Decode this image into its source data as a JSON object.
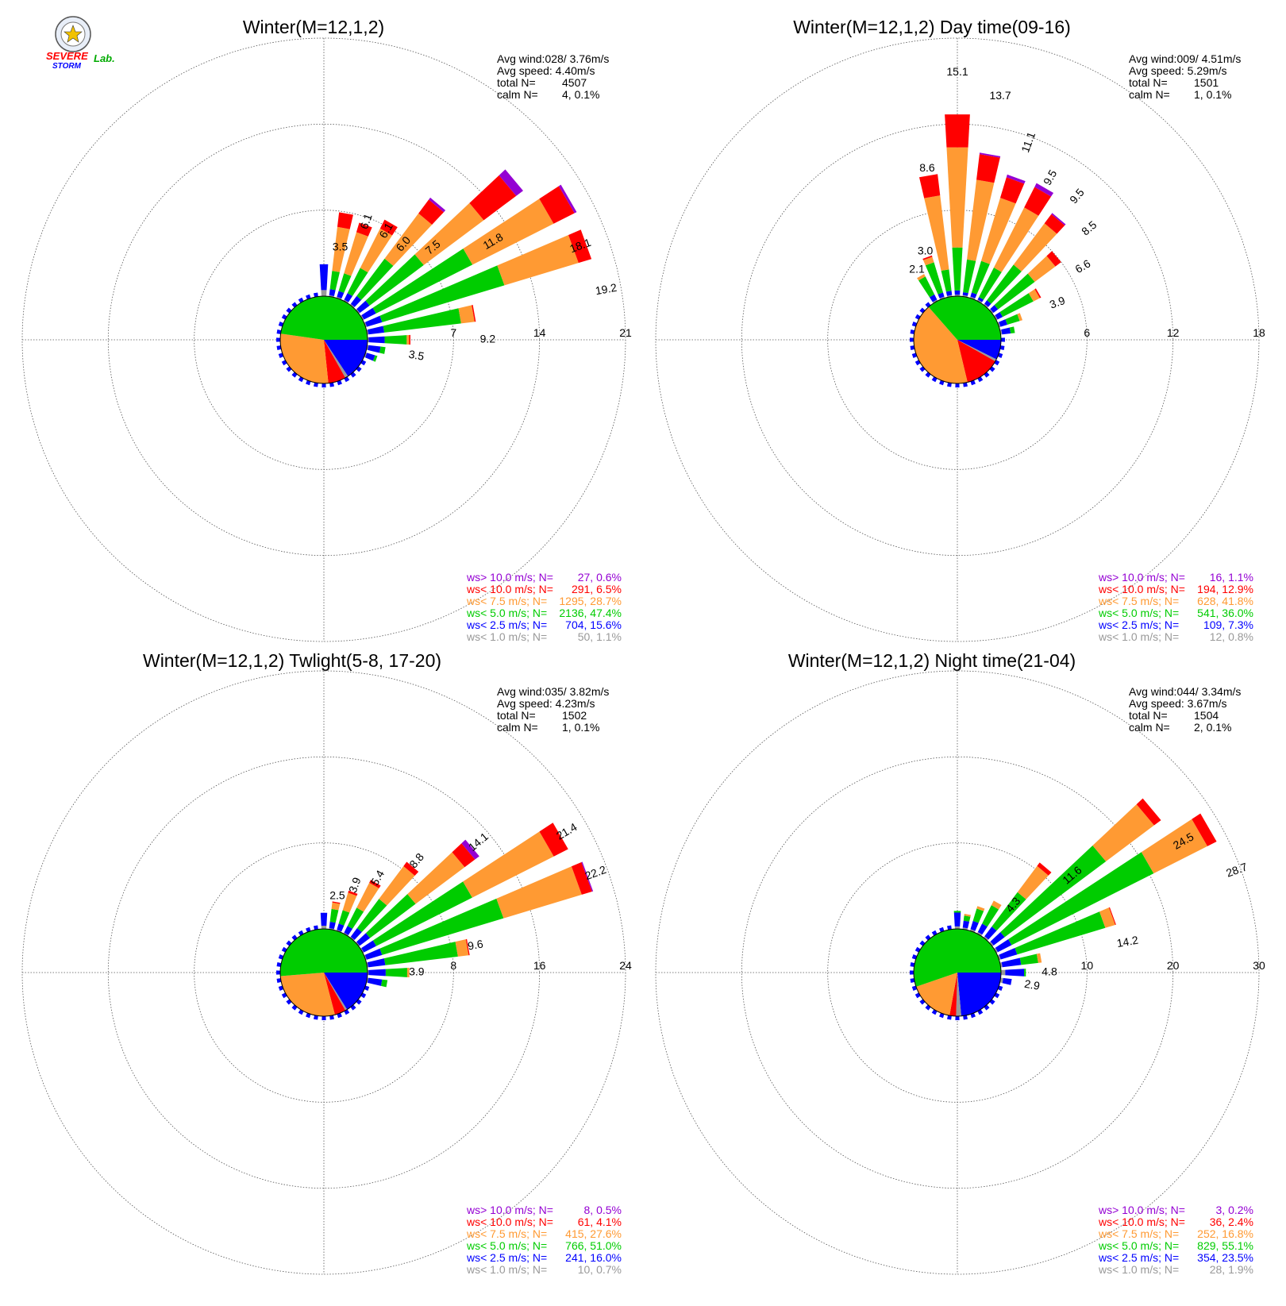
{
  "logo": {
    "brand_line1": "SEVERE",
    "brand_line2": "STORM",
    "brand_lab": "Lab."
  },
  "colors": {
    "gt10": "#9400d3",
    "lt10": "#ff0000",
    "lt7_5": "#ff9a33",
    "lt5": "#00cc00",
    "lt2_5": "#0000ff",
    "lt1": "#999999"
  },
  "chart_data": [
    {
      "type": "wind-rose",
      "title": "Winter(M=12,1,2)",
      "ring_labels": [
        "7",
        "14",
        "21"
      ],
      "rmax": 21,
      "stats": {
        "avg_wind": "Avg wind:028/ 3.76m/s",
        "avg_speed": "Avg speed: 4.40m/s",
        "total_label": "total N=",
        "total_value": "4507",
        "calm_label": "calm N=",
        "calm_value": "4,   0.1%"
      },
      "legend": [
        {
          "key": "gt10",
          "label": "ws> 10.0 m/s; N=",
          "value": "27,  0.6%"
        },
        {
          "key": "lt10",
          "label": "ws< 10.0 m/s; N=",
          "value": "291,  6.5%"
        },
        {
          "key": "lt7_5",
          "label": "ws<  7.5 m/s; N=",
          "value": "1295, 28.7%"
        },
        {
          "key": "lt5",
          "label": "ws<  5.0 m/s; N=",
          "value": "2136, 47.4%"
        },
        {
          "key": "lt2_5",
          "label": "ws<  2.5 m/s; N=",
          "value": "704, 15.6%"
        },
        {
          "key": "lt1",
          "label": "ws<  1.0 m/s; N=",
          "value": "50,  1.1%"
        }
      ],
      "pie": [
        {
          "key": "lt2_5",
          "value": 15.6
        },
        {
          "key": "lt1",
          "value": 1.1
        },
        {
          "key": "lt10",
          "value": 6.5
        },
        {
          "key": "lt7_5",
          "value": 28.7
        },
        {
          "key": "lt5",
          "value": 47.4
        }
      ],
      "sectors": [
        {
          "dir": 0,
          "segments": [
            [
              0.5,
              2.1,
              0,
              0,
              0,
              0
            ]
          ]
        },
        {
          "dir": 10,
          "segments": [
            [
              0.1,
              0.5,
              1.5,
              3.6,
              1.2,
              0.0
            ]
          ]
        },
        {
          "dir": 20,
          "segments": [
            [
              0.1,
              0.5,
              1.5,
              3.5,
              0.8,
              0.0
            ]
          ]
        },
        {
          "dir": 30,
          "segments": [
            [
              0.1,
              0.6,
              2.3,
              3.6,
              0.8,
              0.0
            ]
          ]
        },
        {
          "dir": 40,
          "segments": [
            [
              0.1,
              0.8,
              3.8,
              4.6,
              1.4,
              0.2
            ]
          ]
        },
        {
          "dir": 50,
          "segments": [
            [
              0.1,
              1.0,
              5.5,
              6.1,
              3.3,
              0.7
            ]
          ]
        },
        {
          "dir": 60,
          "segments": [
            [
              0.1,
              1.1,
              8.8,
              7.4,
              1.9,
              0.2
            ]
          ]
        },
        {
          "dir": 70,
          "segments": [
            [
              0.1,
              1.3,
              10.4,
              6.3,
              1.1,
              0.0
            ]
          ]
        },
        {
          "dir": 80,
          "segments": [
            [
              0.1,
              1.3,
              6.3,
              1.1,
              0.1,
              0.0
            ]
          ]
        },
        {
          "dir": 90,
          "segments": [
            [
              0.1,
              1.3,
              1.8,
              0.2,
              0.1,
              0.0
            ]
          ]
        },
        {
          "dir": 100,
          "segments": [
            [
              0.1,
              1.0,
              0.4,
              0,
              0,
              0
            ]
          ]
        },
        {
          "dir": 110,
          "segments": [
            [
              0.1,
              0.7,
              0.2,
              0,
              0,
              0
            ]
          ]
        }
      ],
      "bar_labels": [
        {
          "dir": 10,
          "value": "3.5"
        },
        {
          "dir": 20,
          "value": "6.1"
        },
        {
          "dir": 30,
          "value": "6.1"
        },
        {
          "dir": 40,
          "value": "6.0"
        },
        {
          "dir": 50,
          "value": "7.5"
        },
        {
          "dir": 60,
          "value": "11.8"
        },
        {
          "dir": 70,
          "value": "18.1"
        },
        {
          "dir": 80,
          "value": "19.2"
        },
        {
          "dir": 90,
          "value": "9.2"
        },
        {
          "dir": 100,
          "value": "3.5"
        }
      ]
    },
    {
      "type": "wind-rose",
      "title": "Winter(M=12,1,2) Day time(09-16)",
      "ring_labels": [
        "6",
        "12",
        "18"
      ],
      "rmax": 18,
      "stats": {
        "avg_wind": "Avg wind:009/ 4.51m/s",
        "avg_speed": "Avg speed: 5.29m/s",
        "total_label": "total N=",
        "total_value": "1501",
        "calm_label": "calm N=",
        "calm_value": "1,   0.1%"
      },
      "legend": [
        {
          "key": "gt10",
          "label": "ws> 10.0 m/s; N=",
          "value": "16,  1.1%"
        },
        {
          "key": "lt10",
          "label": "ws< 10.0 m/s; N=",
          "value": "194, 12.9%"
        },
        {
          "key": "lt7_5",
          "label": "ws<  7.5 m/s; N=",
          "value": "628, 41.8%"
        },
        {
          "key": "lt5",
          "label": "ws<  5.0 m/s; N=",
          "value": "541, 36.0%"
        },
        {
          "key": "lt2_5",
          "label": "ws<  2.5 m/s; N=",
          "value": "109,  7.3%"
        },
        {
          "key": "lt1",
          "label": "ws<  1.0 m/s; N=",
          "value": "12,  0.8%"
        }
      ],
      "pie": [
        {
          "key": "lt2_5",
          "value": 7.3
        },
        {
          "key": "lt1",
          "value": 0.8
        },
        {
          "key": "lt10",
          "value": 12.9
        },
        {
          "key": "lt7_5",
          "value": 41.8
        },
        {
          "key": "lt5",
          "value": 36.0
        }
      ],
      "sectors": [
        {
          "dir": -30,
          "segments": [
            [
              0.1,
              0.4,
              1.4,
              0.2,
              0,
              0
            ]
          ]
        },
        {
          "dir": -20,
          "segments": [
            [
              0.1,
              0.3,
              2.2,
              0.4,
              0.1,
              0
            ]
          ]
        },
        {
          "dir": -10,
          "segments": [
            [
              0.1,
              0.3,
              1.5,
              5.2,
              1.5,
              0
            ]
          ]
        },
        {
          "dir": 0,
          "segments": [
            [
              0.1,
              0.3,
              3.0,
              7.0,
              2.3,
              0
            ]
          ]
        },
        {
          "dir": 10,
          "segments": [
            [
              0.1,
              0.2,
              2.3,
              5.6,
              1.8,
              0.1
            ]
          ]
        },
        {
          "dir": 20,
          "segments": [
            [
              0.1,
              0.3,
              2.3,
              4.6,
              1.5,
              0.2
            ]
          ]
        },
        {
          "dir": 30,
          "segments": [
            [
              0.1,
              0.2,
              2.3,
              4.7,
              1.6,
              0.3
            ]
          ]
        },
        {
          "dir": 40,
          "segments": [
            [
              0.1,
              0.3,
              3.1,
              3.6,
              0.8,
              0.1
            ]
          ]
        },
        {
          "dir": 50,
          "segments": [
            [
              0.1,
              0.4,
              3.2,
              1.8,
              0.5,
              0
            ]
          ]
        },
        {
          "dir": 60,
          "segments": [
            [
              0.1,
              0.4,
              2.4,
              0.5,
              0.1,
              0
            ]
          ]
        },
        {
          "dir": 70,
          "segments": [
            [
              0.1,
              0.5,
              0.9,
              0.2,
              0,
              0
            ]
          ]
        },
        {
          "dir": 80,
          "segments": [
            [
              0.1,
              0.6,
              0.3,
              0,
              0,
              0
            ]
          ]
        }
      ],
      "bar_labels": [
        {
          "dir": -30,
          "value": "2.1"
        },
        {
          "dir": -20,
          "value": "3.0"
        },
        {
          "dir": -10,
          "value": "8.6"
        },
        {
          "dir": 0,
          "value": "15.1"
        },
        {
          "dir": 10,
          "value": "13.7"
        },
        {
          "dir": 20,
          "value": "11.1"
        },
        {
          "dir": 30,
          "value": "9.5"
        },
        {
          "dir": 40,
          "value": "9.5"
        },
        {
          "dir": 50,
          "value": "8.5"
        },
        {
          "dir": 60,
          "value": "6.6"
        },
        {
          "dir": 70,
          "value": "3.9"
        }
      ]
    },
    {
      "type": "wind-rose",
      "title": "Winter(M=12,1,2) Twlight(5-8, 17-20)",
      "ring_labels": [
        "8",
        "16",
        "24"
      ],
      "rmax": 24,
      "stats": {
        "avg_wind": "Avg wind:035/ 3.82m/s",
        "avg_speed": "Avg speed: 4.23m/s",
        "total_label": "total N=",
        "total_value": "1502",
        "calm_label": "calm N=",
        "calm_value": "1,   0.1%"
      },
      "legend": [
        {
          "key": "gt10",
          "label": "ws> 10.0 m/s; N=",
          "value": "8,  0.5%"
        },
        {
          "key": "lt10",
          "label": "ws< 10.0 m/s; N=",
          "value": "61,  4.1%"
        },
        {
          "key": "lt7_5",
          "label": "ws<  7.5 m/s; N=",
          "value": "415, 27.6%"
        },
        {
          "key": "lt5",
          "label": "ws<  5.0 m/s; N=",
          "value": "766, 51.0%"
        },
        {
          "key": "lt2_5",
          "label": "ws<  2.5 m/s; N=",
          "value": "241, 16.0%"
        },
        {
          "key": "lt1",
          "label": "ws<  1.0 m/s; N=",
          "value": "10,  0.7%"
        }
      ],
      "pie": [
        {
          "key": "lt2_5",
          "value": 16.0
        },
        {
          "key": "lt1",
          "value": 0.7
        },
        {
          "key": "lt10",
          "value": 4.1
        },
        {
          "key": "lt7_5",
          "value": 27.6
        },
        {
          "key": "lt5",
          "value": 51.0
        }
      ],
      "sectors": [
        {
          "dir": 0,
          "segments": [
            [
              0.3,
              1.2,
              0,
              0,
              0,
              0
            ]
          ]
        },
        {
          "dir": 10,
          "segments": [
            [
              0.1,
              0.6,
              1.2,
              0.6,
              0.1,
              0
            ]
          ]
        },
        {
          "dir": 20,
          "segments": [
            [
              0.1,
              0.6,
              1.3,
              1.7,
              0.2,
              0
            ]
          ]
        },
        {
          "dir": 30,
          "segments": [
            [
              0.1,
              0.7,
              1.9,
              2.6,
              0.3,
              0
            ]
          ]
        },
        {
          "dir": 40,
          "segments": [
            [
              0.1,
              1.0,
              3.4,
              3.8,
              0.5,
              0
            ]
          ]
        },
        {
          "dir": 50,
          "segments": [
            [
              0.1,
              1.2,
              5.3,
              5.7,
              1.2,
              0.5
            ]
          ]
        },
        {
          "dir": 60,
          "segments": [
            [
              0.1,
              1.3,
              10.0,
              8.5,
              1.5,
              0
            ]
          ]
        },
        {
          "dir": 70,
          "segments": [
            [
              0.1,
              1.5,
              11.8,
              7.6,
              1.0,
              0.1
            ]
          ]
        },
        {
          "dir": 80,
          "segments": [
            [
              0.1,
              1.6,
              6.8,
              1.0,
              0.1,
              0
            ]
          ]
        },
        {
          "dir": 90,
          "segments": [
            [
              0.1,
              1.6,
              2.0,
              0.2,
              0,
              0
            ]
          ]
        },
        {
          "dir": 100,
          "segments": [
            [
              0.1,
              1.3,
              0.5,
              0,
              0,
              0
            ]
          ]
        }
      ],
      "bar_labels": [
        {
          "dir": 10,
          "value": "2.5"
        },
        {
          "dir": 20,
          "value": "3.9"
        },
        {
          "dir": 30,
          "value": "5.4"
        },
        {
          "dir": 40,
          "value": "8.8"
        },
        {
          "dir": 50,
          "value": "14.1"
        },
        {
          "dir": 60,
          "value": "21.4"
        },
        {
          "dir": 70,
          "value": "22.2"
        },
        {
          "dir": 80,
          "value": "9.6"
        },
        {
          "dir": 90,
          "value": "3.9"
        }
      ]
    },
    {
      "type": "wind-rose",
      "title": "Winter(M=12,1,2) Night time(21-04)",
      "ring_labels": [
        "10",
        "20",
        "30"
      ],
      "rmax": 30,
      "stats": {
        "avg_wind": "Avg wind:044/ 3.34m/s",
        "avg_speed": "Avg speed: 3.67m/s",
        "total_label": "total N=",
        "total_value": "1504",
        "calm_label": "calm N=",
        "calm_value": "2,   0.1%"
      },
      "legend": [
        {
          "key": "gt10",
          "label": "ws> 10.0 m/s; N=",
          "value": "3,  0.2%"
        },
        {
          "key": "lt10",
          "label": "ws< 10.0 m/s; N=",
          "value": "36,  2.4%"
        },
        {
          "key": "lt7_5",
          "label": "ws<  7.5 m/s; N=",
          "value": "252, 16.8%"
        },
        {
          "key": "lt5",
          "label": "ws<  5.0 m/s; N=",
          "value": "829, 55.1%"
        },
        {
          "key": "lt2_5",
          "label": "ws<  2.5 m/s; N=",
          "value": "354, 23.5%"
        },
        {
          "key": "lt1",
          "label": "ws<  1.0 m/s; N=",
          "value": "28,  1.9%"
        }
      ],
      "pie": [
        {
          "key": "lt2_5",
          "value": 23.5
        },
        {
          "key": "lt1",
          "value": 1.9
        },
        {
          "key": "lt10",
          "value": 2.4
        },
        {
          "key": "lt7_5",
          "value": 16.8
        },
        {
          "key": "lt5",
          "value": 55.1
        }
      ],
      "sectors": [
        {
          "dir": 0,
          "segments": [
            [
              0.3,
              1.6,
              0.2,
              0,
              0,
              0
            ]
          ]
        },
        {
          "dir": 10,
          "segments": [
            [
              0.2,
              0.8,
              0.6,
              0.2,
              0,
              0
            ]
          ]
        },
        {
          "dir": 20,
          "segments": [
            [
              0.2,
              1.0,
              1.5,
              0.3,
              0,
              0
            ]
          ]
        },
        {
          "dir": 30,
          "segments": [
            [
              0.2,
              1.1,
              2.4,
              0.6,
              0,
              0
            ]
          ]
        },
        {
          "dir": 40,
          "segments": [
            [
              0.2,
              1.4,
              5.0,
              3.8,
              0.5,
              0
            ]
          ]
        },
        {
          "dir": 50,
          "segments": [
            [
              0.2,
              1.6,
              14.7,
              7.0,
              1.0,
              0
            ]
          ]
        },
        {
          "dir": 60,
          "segments": [
            [
              0.2,
              1.8,
              18.5,
              7.0,
              1.2,
              0
            ]
          ]
        },
        {
          "dir": 70,
          "segments": [
            [
              0.2,
              2.0,
              10.7,
              1.2,
              0.1,
              0
            ]
          ]
        },
        {
          "dir": 80,
          "segments": [
            [
              0.2,
              2.2,
              2.0,
              0.4,
              0,
              0
            ]
          ]
        },
        {
          "dir": 90,
          "segments": [
            [
              0.5,
              2.2,
              0.2,
              0,
              0,
              0
            ]
          ]
        },
        {
          "dir": 100,
          "segments": [
            [
              0.3,
              1.0,
              0,
              0,
              0,
              0
            ]
          ]
        }
      ],
      "bar_labels": [
        {
          "dir": 40,
          "value": "4.3"
        },
        {
          "dir": 50,
          "value": "11.6"
        },
        {
          "dir": 60,
          "value": "24.5"
        },
        {
          "dir": 70,
          "value": "28.7"
        },
        {
          "dir": 80,
          "value": "14.2"
        },
        {
          "dir": 90,
          "value": "4.8"
        },
        {
          "dir": 100,
          "value": "2.9"
        }
      ]
    }
  ]
}
